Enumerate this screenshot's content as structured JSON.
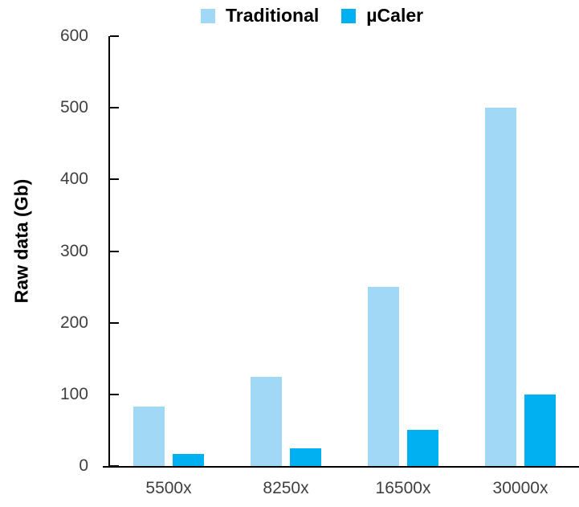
{
  "chart_data": {
    "type": "bar",
    "title": "",
    "xlabel": "",
    "ylabel": "Raw data (Gb)",
    "categories": [
      "5500x",
      "8250x",
      "16500x",
      "30000x"
    ],
    "series": [
      {
        "name": "Traditional",
        "color": "#A1D8F5",
        "values": [
          83,
          125,
          250,
          500
        ]
      },
      {
        "name": "µCaler",
        "color": "#00B0F0",
        "values": [
          17,
          25,
          50,
          100
        ]
      }
    ],
    "ylim": [
      0,
      600
    ],
    "yticks": [
      0,
      100,
      200,
      300,
      400,
      500,
      600
    ],
    "grid": false,
    "legend_position": "top-center",
    "axis_color": "#000000",
    "tick_label_color": "#404040"
  }
}
